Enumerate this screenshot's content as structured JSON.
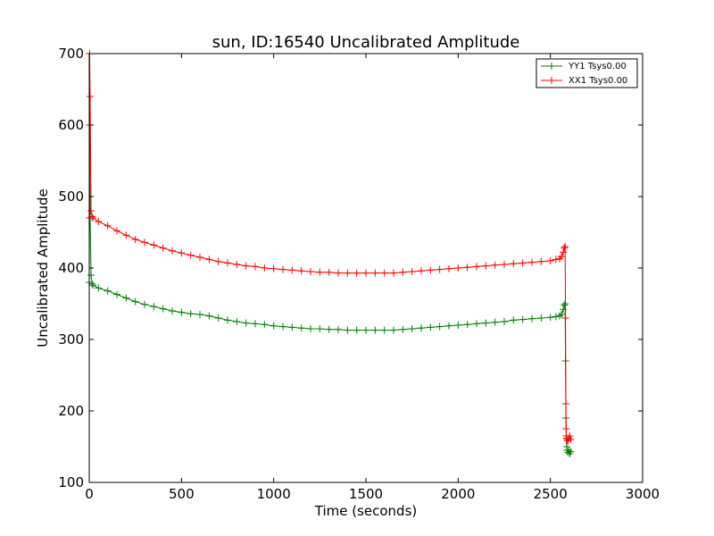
{
  "chart_data": {
    "type": "line",
    "title": "sun, ID:16540 Uncalibrated Amplitude",
    "xlabel": "Time (seconds)",
    "ylabel": "Uncalibrated Amplitude",
    "xlim": [
      0,
      3000
    ],
    "ylim": [
      100,
      700
    ],
    "xticks": [
      0,
      500,
      1000,
      1500,
      2000,
      2500,
      3000
    ],
    "yticks": [
      100,
      200,
      300,
      400,
      500,
      600,
      700
    ],
    "grid": false,
    "legend_position": "top-right",
    "series": [
      {
        "name": "YY1 Tsys0.00",
        "color": "#008000",
        "marker": "+",
        "x": [
          0,
          2,
          5,
          10,
          15,
          20,
          50,
          100,
          150,
          200,
          250,
          300,
          350,
          400,
          450,
          500,
          550,
          600,
          650,
          700,
          750,
          800,
          850,
          900,
          950,
          1000,
          1050,
          1100,
          1150,
          1200,
          1250,
          1300,
          1350,
          1400,
          1450,
          1500,
          1550,
          1600,
          1650,
          1700,
          1750,
          1800,
          1850,
          1900,
          1950,
          2000,
          2050,
          2100,
          2150,
          2200,
          2250,
          2300,
          2350,
          2400,
          2450,
          2500,
          2530,
          2550,
          2560,
          2570,
          2575,
          2580,
          2582,
          2584,
          2586,
          2588,
          2590,
          2595,
          2600,
          2605,
          2610
        ],
        "values": [
          380,
          600,
          470,
          390,
          378,
          376,
          372,
          368,
          363,
          358,
          353,
          349,
          346,
          343,
          340,
          338,
          336,
          335,
          333,
          330,
          327,
          325,
          323,
          322,
          321,
          319,
          318,
          317,
          316,
          315,
          315,
          314,
          314,
          313,
          313,
          313,
          313,
          313,
          313,
          314,
          315,
          316,
          317,
          318,
          319,
          320,
          321,
          322,
          323,
          324,
          325,
          327,
          328,
          329,
          330,
          331,
          332,
          333,
          335,
          342,
          348,
          350,
          270,
          190,
          165,
          150,
          145,
          142,
          145,
          140,
          143
        ]
      },
      {
        "name": "XX1 Tsys0.00",
        "color": "#ff0000",
        "marker": "+",
        "x": [
          0,
          2,
          5,
          10,
          15,
          20,
          50,
          100,
          150,
          200,
          250,
          300,
          350,
          400,
          450,
          500,
          550,
          600,
          650,
          700,
          750,
          800,
          850,
          900,
          950,
          1000,
          1050,
          1100,
          1150,
          1200,
          1250,
          1300,
          1350,
          1400,
          1450,
          1500,
          1550,
          1600,
          1650,
          1700,
          1750,
          1800,
          1850,
          1900,
          1950,
          2000,
          2050,
          2100,
          2150,
          2200,
          2250,
          2300,
          2350,
          2400,
          2450,
          2500,
          2530,
          2550,
          2560,
          2570,
          2575,
          2580,
          2582,
          2584,
          2586,
          2588,
          2590,
          2595,
          2600,
          2605,
          2610
        ],
        "values": [
          470,
          700,
          640,
          480,
          472,
          470,
          465,
          459,
          452,
          446,
          440,
          436,
          432,
          428,
          424,
          421,
          418,
          415,
          412,
          409,
          407,
          405,
          403,
          402,
          400,
          399,
          398,
          397,
          396,
          395,
          394,
          394,
          393,
          393,
          393,
          393,
          393,
          393,
          393,
          394,
          395,
          396,
          397,
          398,
          399,
          400,
          401,
          402,
          403,
          404,
          405,
          406,
          407,
          408,
          409,
          410,
          412,
          413,
          416,
          422,
          428,
          430,
          330,
          210,
          175,
          162,
          160,
          158,
          162,
          165,
          160
        ]
      }
    ]
  }
}
